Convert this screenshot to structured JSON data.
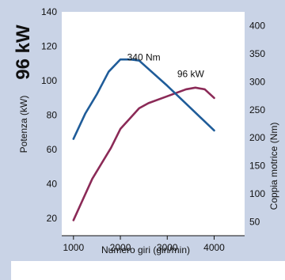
{
  "headline": "96 kW",
  "chart_data": {
    "type": "line",
    "xlabel": "Numero giri (giri/min)",
    "ylabel_left": "Potenza (kW)",
    "ylabel_right": "Coppia motrice (Nm)",
    "xlim": [
      750,
      4650
    ],
    "ylim_left": [
      10,
      140
    ],
    "ylim_right": [
      25,
      425
    ],
    "x_ticks": [
      1000,
      2000,
      3000,
      4000
    ],
    "y_left_ticks": [
      20,
      40,
      60,
      80,
      100,
      120,
      140
    ],
    "y_right_ticks": [
      50,
      100,
      150,
      200,
      250,
      300,
      350,
      400
    ],
    "grid": false,
    "series": [
      {
        "axis": "left",
        "color": "#8b2a57",
        "x": [
          1000,
          1400,
          1800,
          2000,
          2200,
          2400,
          2600,
          3000,
          3400,
          3600,
          3800,
          4000
        ],
        "y": [
          19,
          43,
          61,
          72,
          78,
          84,
          87,
          91,
          95,
          96,
          95,
          90
        ]
      },
      {
        "axis": "right",
        "color": "#1f5c99",
        "x": [
          1000,
          1250,
          1500,
          1750,
          2000,
          2200,
          2400,
          2600,
          3000,
          3500,
          4000
        ],
        "y": [
          198,
          243,
          278,
          318,
          340,
          340,
          338,
          323,
          293,
          253,
          213
        ]
      }
    ],
    "annotations": [
      {
        "text": "96 kW",
        "x": 3500,
        "y": 102,
        "axis": "left"
      },
      {
        "text": "340 Nm",
        "x": 2500,
        "y": 338,
        "axis": "right"
      }
    ]
  },
  "colors": {
    "panel_bg": "#c9d3e6",
    "plot_bg": "#ffffff",
    "power": "#8b2a57",
    "torque": "#1f5c99"
  }
}
